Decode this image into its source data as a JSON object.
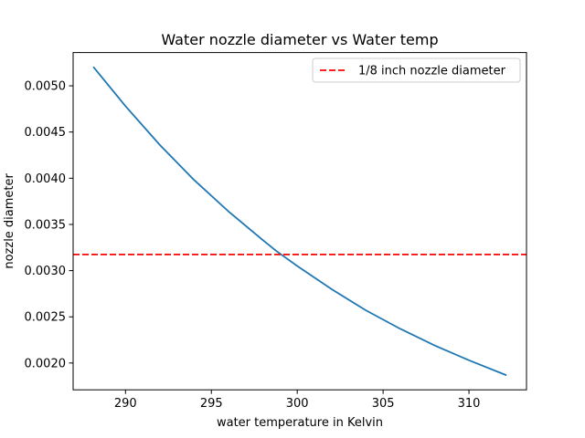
{
  "chart_data": {
    "type": "line",
    "title": "Water nozzle diameter vs Water temp",
    "xlabel": "water temperature in Kelvin",
    "ylabel": "nozzle diameter",
    "xlim": [
      286.95,
      313.35
    ],
    "ylim": [
      0.00171,
      0.00536
    ],
    "xticks": [
      290,
      295,
      300,
      305,
      310
    ],
    "xtick_labels": [
      "290",
      "295",
      "300",
      "305",
      "310"
    ],
    "yticks": [
      0.002,
      0.0025,
      0.003,
      0.0035,
      0.004,
      0.0045,
      0.005
    ],
    "ytick_labels": [
      "0.0020",
      "0.0025",
      "0.0030",
      "0.0035",
      "0.0040",
      "0.0045",
      "0.0050"
    ],
    "grid": false,
    "legend_position": "top-right",
    "series": [
      {
        "color": "#1f77b4",
        "style": "solid",
        "x": [
          288.15,
          290,
          292,
          294,
          296,
          298,
          298.8,
          300,
          302,
          304,
          306,
          308,
          310,
          312.15
        ],
        "y": [
          0.0052,
          0.00478,
          0.00436,
          0.00398,
          0.00364,
          0.00333,
          0.00321,
          0.00305,
          0.0028,
          0.00257,
          0.00237,
          0.00219,
          0.00203,
          0.00187
        ]
      },
      {
        "name": "1/8 inch nozzle diameter",
        "color": "#ff0000",
        "style": "dashed",
        "hline": 0.003175
      }
    ]
  }
}
